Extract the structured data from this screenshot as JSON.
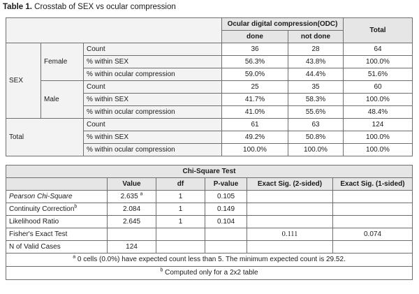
{
  "caption": {
    "label": "Table 1.",
    "text": " Crosstab of SEX vs ocular compression"
  },
  "crosstab": {
    "group_header": "Ocular digital compression(ODC)",
    "col_done": "done",
    "col_not_done": "not done",
    "col_total": "Total",
    "row_group_label": "SEX",
    "stat_labels": [
      "Count",
      "% within SEX",
      "% within ocular compression"
    ],
    "female": {
      "label": "Female",
      "rows": [
        [
          "36",
          "28",
          "64"
        ],
        [
          "56.3%",
          "43.8%",
          "100.0%"
        ],
        [
          "59.0%",
          "44.4%",
          "51.6%"
        ]
      ]
    },
    "male": {
      "label": "Male",
      "rows": [
        [
          "25",
          "35",
          "60"
        ],
        [
          "41.7%",
          "58.3%",
          "100.0%"
        ],
        [
          "41.0%",
          "55.6%",
          "48.4%"
        ]
      ]
    },
    "total": {
      "label": "Total",
      "rows": [
        [
          "61",
          "63",
          "124"
        ],
        [
          "49.2%",
          "50.8%",
          "100.0%"
        ],
        [
          "100.0%",
          "100.0%",
          "100.0%"
        ]
      ]
    }
  },
  "chisq": {
    "title": "Chi-Square Test",
    "headers": {
      "value": "Value",
      "df": "df",
      "p": "P-value",
      "exact2": "Exact Sig. (2-sided)",
      "exact1": "Exact Sig. (1-sided)"
    },
    "pearson": {
      "label": "Pearson Chi-Square",
      "value": "2.635",
      "sup": "a",
      "df": "1",
      "p": "0.105"
    },
    "continuity": {
      "label": "Continuity Correction",
      "sup": "b",
      "value": "2.084",
      "df": "1",
      "p": "0.149"
    },
    "likelihood": {
      "label": "Likelihood Ratio",
      "value": "2.645",
      "df": "1",
      "p": "0.104"
    },
    "fisher": {
      "label": "Fisher's Exact Test",
      "exact2": "0.111",
      "exact1": "0.074"
    },
    "valid": {
      "label": "N of Valid Cases",
      "value": "124"
    },
    "note_a": {
      "sup": "a",
      "text": " 0 cells (0.0%) have expected count less than 5. The minimum expected count is 29.52."
    },
    "note_b": {
      "sup": "b",
      "text": " Computed only for a 2x2 table"
    }
  }
}
